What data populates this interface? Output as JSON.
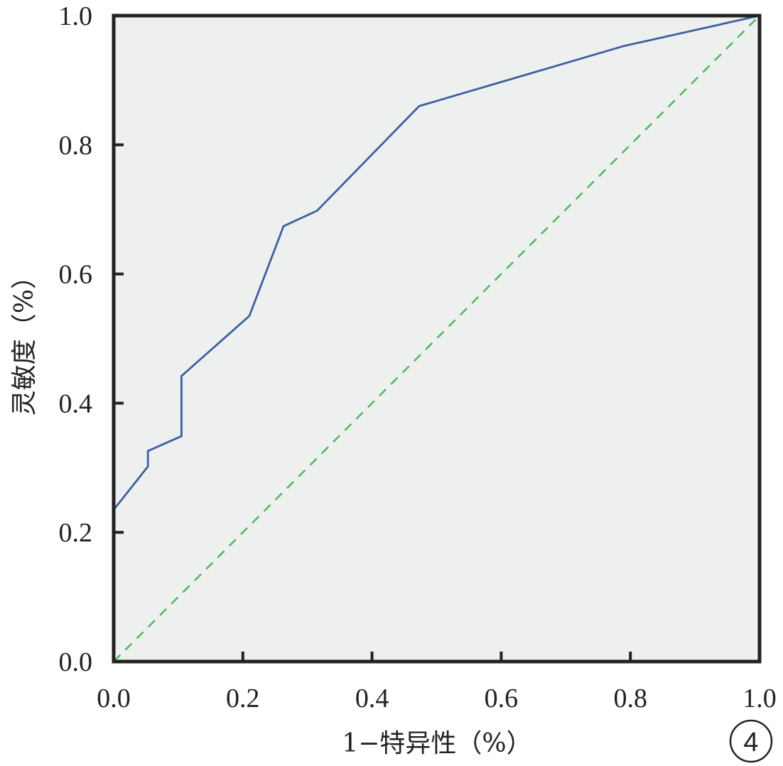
{
  "chart_data": {
    "type": "line",
    "xlabel": "1−特异性（%）",
    "ylabel": "灵敏度（%）",
    "xlim": [
      0,
      1
    ],
    "ylim": [
      0,
      1
    ],
    "x_ticks": [
      "0.0",
      "0.2",
      "0.4",
      "0.6",
      "0.8",
      "1.0"
    ],
    "y_ticks": [
      "0.0",
      "0.2",
      "0.4",
      "0.6",
      "0.8",
      "1.0"
    ],
    "grid": false,
    "series": [
      {
        "color": "#3f5fa3",
        "style": "solid",
        "points": [
          [
            0.0,
            0.235
          ],
          [
            0.053,
            0.302
          ],
          [
            0.053,
            0.326
          ],
          [
            0.105,
            0.349
          ],
          [
            0.105,
            0.442
          ],
          [
            0.21,
            0.535
          ],
          [
            0.263,
            0.674
          ],
          [
            0.315,
            0.698
          ],
          [
            0.473,
            0.86
          ],
          [
            0.79,
            0.953
          ],
          [
            1.0,
            1.0
          ]
        ]
      },
      {
        "color": "#4cba5a",
        "style": "dashed",
        "points": [
          [
            0,
            0
          ],
          [
            1,
            1
          ]
        ]
      }
    ],
    "plot_background": "#eef0ef",
    "panel_label": "4"
  }
}
